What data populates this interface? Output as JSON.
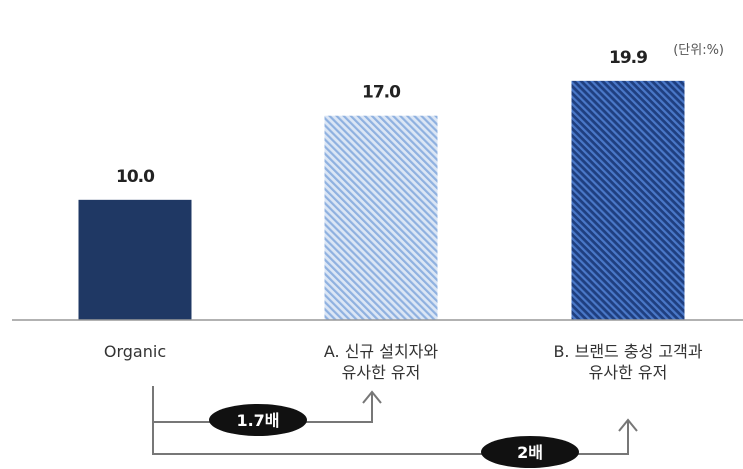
{
  "chart_data": {
    "type": "bar",
    "unit_label": "(단위:%)",
    "categories": [
      [
        "Organic"
      ],
      [
        "A. 신규 설치자와",
        "유사한 유저"
      ],
      [
        "B. 브랜드 충성 고객과",
        "유사한 유저"
      ]
    ],
    "values": [
      10.0,
      17.0,
      19.9
    ],
    "value_labels": [
      "10.0",
      "17.0",
      "19.9"
    ],
    "bar_styles": [
      "solid",
      "light-hatch",
      "dark-hatch"
    ],
    "ylim": [
      0,
      23.3
    ],
    "grid": false,
    "colors": {
      "solid": "#1f3864",
      "light_hatch_bg": "#dbe6f5",
      "light_hatch_stripe": "#8fb1e0",
      "dark_hatch_bg": "#1f3f80",
      "dark_hatch_stripe": "#4a78c8",
      "axis": "#999999",
      "connector": "#777777",
      "badge": "#111111"
    },
    "annotations": [
      {
        "from": 0,
        "to": 1,
        "label": "1.7배"
      },
      {
        "from": 0,
        "to": 2,
        "label": "2배"
      }
    ]
  }
}
